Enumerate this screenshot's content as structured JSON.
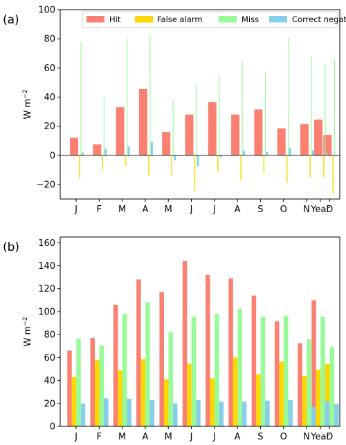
{
  "chart_data": [
    {
      "type": "bar",
      "panel_label": "(a)",
      "categories": [
        "J",
        "F",
        "M",
        "A",
        "M",
        "J",
        "J",
        "A",
        "S",
        "O",
        "N",
        "D",
        "Year"
      ],
      "ylabel": "W m−2",
      "ylim": [
        -30,
        100
      ],
      "yticks": [
        -20,
        0,
        20,
        40,
        60,
        80,
        100
      ],
      "zero_line": true,
      "legend": "top",
      "series": [
        {
          "name": "Hit",
          "color": "#fa8072",
          "values": [
            12,
            7.5,
            33,
            45.5,
            16,
            28,
            36.5,
            28,
            31.5,
            18.5,
            21.5,
            14,
            24.5
          ]
        },
        {
          "name": "False alarm",
          "color": "#ffd700",
          "values": [
            -16,
            -10,
            -7.5,
            -13.5,
            -14,
            -24.5,
            -11.5,
            -17.5,
            -12,
            -19,
            -15,
            -26,
            -15
          ]
        },
        {
          "name": "Miss",
          "color": "#98fb98",
          "values": [
            78,
            40,
            80.5,
            83,
            38,
            49,
            55.5,
            64.5,
            57.5,
            80.5,
            68,
            66,
            62.5
          ]
        },
        {
          "name": "Correct negative",
          "color": "#87ceeb",
          "values": [
            2,
            4.5,
            6,
            9,
            -3.5,
            -7.5,
            -1.5,
            3,
            2.5,
            5,
            3.5,
            0.5,
            1.5
          ]
        }
      ]
    },
    {
      "type": "bar",
      "panel_label": "(b)",
      "categories": [
        "J",
        "F",
        "M",
        "A",
        "M",
        "J",
        "J",
        "A",
        "S",
        "O",
        "N",
        "D",
        "Year"
      ],
      "ylabel": "W m−2",
      "ylim": [
        0,
        165
      ],
      "yticks": [
        0,
        20,
        40,
        60,
        80,
        100,
        120,
        140,
        160
      ],
      "series": [
        {
          "name": "Hit",
          "color": "#fa8072",
          "values": [
            66,
            77,
            106,
            128,
            117,
            144,
            132,
            129,
            114,
            91.5,
            72.5,
            55,
            110
          ]
        },
        {
          "name": "False alarm",
          "color": "#ffd700",
          "values": [
            43,
            58,
            49,
            58.5,
            41,
            54.5,
            42,
            60,
            45.5,
            56.5,
            44,
            54.5,
            49.5
          ]
        },
        {
          "name": "Miss",
          "color": "#98fb98",
          "values": [
            76.5,
            70.5,
            98,
            108,
            82,
            95.5,
            98,
            102.5,
            95.5,
            96.5,
            76,
            69,
            95.5
          ]
        },
        {
          "name": "Correct negative",
          "color": "#87ceeb",
          "values": [
            20,
            24.5,
            24,
            23,
            20,
            23,
            21.5,
            21.5,
            22.5,
            23,
            17,
            19.5,
            22
          ]
        }
      ]
    }
  ]
}
